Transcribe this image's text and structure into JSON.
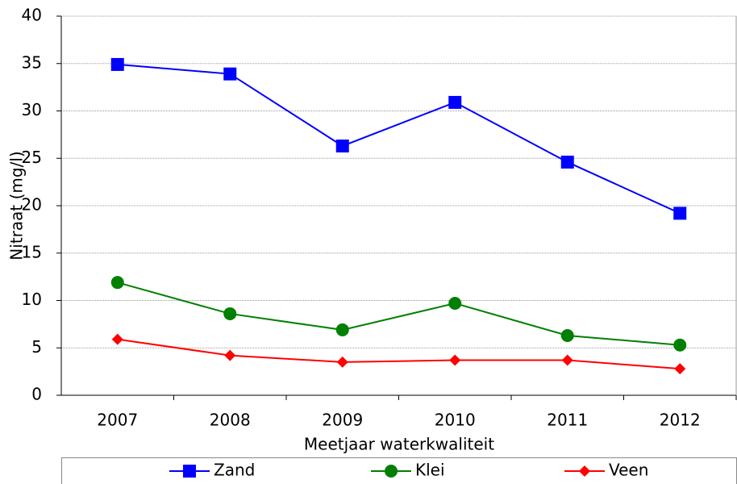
{
  "chart_data": {
    "type": "line",
    "y_label": "Nitraat (mg/l)",
    "x_label": "Meetjaar waterkwaliteit",
    "categories": [
      "2007",
      "2008",
      "2009",
      "2010",
      "2011",
      "2012"
    ],
    "series": [
      {
        "name": "Zand",
        "color": "#0000ff",
        "marker": "square",
        "values": [
          34.9,
          33.9,
          26.3,
          30.9,
          24.6,
          19.2
        ]
      },
      {
        "name": "Klei",
        "color": "#008000",
        "marker": "circle",
        "values": [
          11.9,
          8.6,
          6.9,
          9.7,
          6.3,
          5.3
        ]
      },
      {
        "name": "Veen",
        "color": "#ff0000",
        "marker": "diamond",
        "values": [
          5.9,
          4.2,
          3.5,
          3.7,
          3.7,
          2.8
        ]
      }
    ],
    "ylim": [
      0,
      40
    ],
    "yticks": [
      0,
      5,
      10,
      15,
      20,
      25,
      30,
      35,
      40
    ],
    "grid": true,
    "legend": "bottom"
  }
}
